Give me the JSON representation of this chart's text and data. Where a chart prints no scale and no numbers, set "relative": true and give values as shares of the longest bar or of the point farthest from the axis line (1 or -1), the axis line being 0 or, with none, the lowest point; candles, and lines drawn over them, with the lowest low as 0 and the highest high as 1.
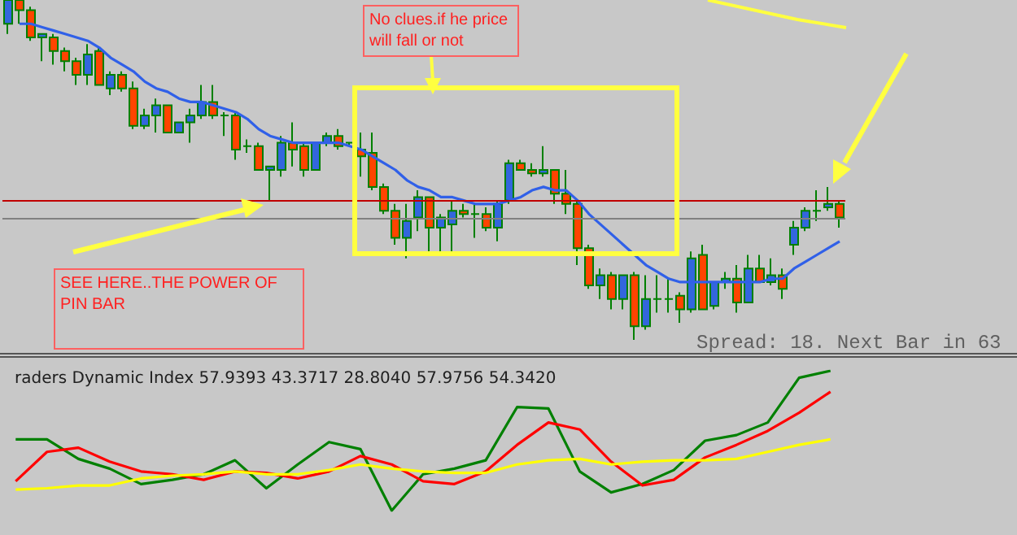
{
  "chart_data": [
    {
      "type": "candlestick",
      "relative": true,
      "marker": "none",
      "categories": [
        null,
        null,
        null,
        null,
        null,
        null,
        null,
        null,
        null,
        null,
        null,
        null,
        null,
        null,
        null,
        null,
        null,
        null,
        null,
        null,
        null,
        null,
        null,
        null,
        null,
        null,
        null,
        null,
        null,
        null,
        null,
        null,
        null,
        null,
        null,
        null,
        null,
        null,
        null,
        null,
        null,
        null,
        null,
        null,
        null,
        null,
        null,
        null,
        null,
        null,
        null,
        null,
        null,
        null,
        null,
        null,
        null,
        null,
        null,
        null,
        null,
        null,
        null,
        null,
        null,
        null,
        null,
        null,
        null,
        null,
        null,
        null,
        null,
        null
      ],
      "series": [
        {
          "type": "candlestick",
          "ohlc": [
            [
              0.93,
              1.0,
              0.9,
              1.0
            ],
            [
              1.0,
              1.0,
              0.93,
              0.97
            ],
            [
              0.97,
              0.98,
              0.88,
              0.89
            ],
            [
              0.89,
              0.9,
              0.82,
              0.9
            ],
            [
              0.89,
              0.9,
              0.81,
              0.85
            ],
            [
              0.85,
              0.86,
              0.79,
              0.82
            ],
            [
              0.82,
              0.83,
              0.75,
              0.78
            ],
            [
              0.78,
              0.87,
              0.75,
              0.84
            ],
            [
              0.85,
              0.86,
              0.75,
              0.75
            ],
            [
              0.74,
              0.79,
              0.72,
              0.78
            ],
            [
              0.78,
              0.79,
              0.73,
              0.74
            ],
            [
              0.74,
              0.76,
              0.62,
              0.63
            ],
            [
              0.63,
              0.68,
              0.62,
              0.66
            ],
            [
              0.66,
              0.71,
              0.61,
              0.69
            ],
            [
              0.69,
              0.69,
              0.61,
              0.61
            ],
            [
              0.61,
              0.64,
              0.61,
              0.64
            ],
            [
              0.64,
              0.68,
              0.58,
              0.66
            ],
            [
              0.66,
              0.75,
              0.65,
              0.7
            ],
            [
              0.7,
              0.75,
              0.65,
              0.66
            ],
            [
              0.66,
              0.67,
              0.6,
              0.66
            ],
            [
              0.66,
              0.67,
              0.53,
              0.56
            ],
            [
              0.57,
              0.59,
              0.55,
              0.57
            ],
            [
              0.57,
              0.58,
              0.5,
              0.5
            ],
            [
              0.5,
              0.51,
              0.41,
              0.51
            ],
            [
              0.5,
              0.6,
              0.48,
              0.58
            ],
            [
              0.58,
              0.64,
              0.51,
              0.56
            ],
            [
              0.57,
              0.58,
              0.48,
              0.5
            ],
            [
              0.5,
              0.58,
              0.5,
              0.58
            ],
            [
              0.58,
              0.61,
              0.57,
              0.6
            ],
            [
              0.6,
              0.62,
              0.56,
              0.57
            ],
            [
              0.58,
              0.58,
              0.57,
              0.58
            ],
            [
              0.56,
              0.61,
              0.48,
              0.54
            ],
            [
              0.55,
              0.61,
              0.44,
              0.45
            ],
            [
              0.45,
              0.46,
              0.37,
              0.38
            ],
            [
              0.38,
              0.4,
              0.28,
              0.3
            ],
            [
              0.3,
              0.4,
              0.24,
              0.35
            ],
            [
              0.36,
              0.44,
              0.32,
              0.42
            ],
            [
              0.42,
              0.42,
              0.26,
              0.33
            ],
            [
              0.33,
              0.37,
              0.26,
              0.36
            ],
            [
              0.34,
              0.41,
              0.26,
              0.38
            ],
            [
              0.38,
              0.4,
              0.36,
              0.37
            ],
            [
              0.37,
              0.4,
              0.3,
              0.37
            ],
            [
              0.37,
              0.39,
              0.32,
              0.33
            ],
            [
              0.33,
              0.41,
              0.29,
              0.4
            ],
            [
              0.41,
              0.53,
              0.4,
              0.52
            ],
            [
              0.52,
              0.53,
              0.5,
              0.5
            ],
            [
              0.5,
              0.52,
              0.48,
              0.49
            ],
            [
              0.49,
              0.57,
              0.48,
              0.5
            ],
            [
              0.5,
              0.5,
              0.4,
              0.43
            ],
            [
              0.43,
              0.5,
              0.37,
              0.4
            ],
            [
              0.4,
              0.41,
              0.22,
              0.27
            ],
            [
              0.27,
              0.28,
              0.15,
              0.16
            ],
            [
              0.16,
              0.21,
              0.12,
              0.19
            ],
            [
              0.19,
              0.2,
              0.09,
              0.12
            ],
            [
              0.12,
              0.19,
              0.09,
              0.19
            ],
            [
              0.19,
              0.2,
              0.0,
              0.04
            ],
            [
              0.04,
              0.19,
              0.03,
              0.12
            ],
            [
              0.12,
              0.19,
              0.08,
              0.12
            ],
            [
              0.12,
              0.18,
              0.08,
              0.12
            ],
            [
              0.13,
              0.14,
              0.05,
              0.09
            ],
            [
              0.09,
              0.26,
              0.08,
              0.24
            ],
            [
              0.25,
              0.28,
              0.09,
              0.09
            ],
            [
              0.1,
              0.17,
              0.09,
              0.17
            ],
            [
              0.17,
              0.2,
              0.15,
              0.18
            ],
            [
              0.18,
              0.22,
              0.08,
              0.11
            ],
            [
              0.11,
              0.25,
              0.11,
              0.21
            ],
            [
              0.21,
              0.25,
              0.17,
              0.17
            ],
            [
              0.17,
              0.24,
              0.16,
              0.19
            ],
            [
              0.19,
              0.21,
              0.12,
              0.15
            ],
            [
              0.28,
              0.35,
              0.25,
              0.33
            ],
            [
              0.33,
              0.39,
              0.32,
              0.38
            ],
            [
              0.38,
              0.44,
              0.35,
              0.38
            ],
            [
              0.39,
              0.45,
              0.38,
              0.4
            ],
            [
              0.4,
              0.41,
              0.33,
              0.36
            ]
          ],
          "colors": [
            "#3366dd",
            "#ff4400",
            "#ff4400",
            "#3366dd",
            "#ff4400",
            "#ff4400",
            "#ff4400",
            "#3366dd",
            "#ff4400",
            "#3366dd",
            "#ff4400",
            "#ff4400",
            "#3366dd",
            "#3366dd",
            "#ff4400",
            "#3366dd",
            "#3366dd",
            "#3366dd",
            "#ff4400",
            "#008000",
            "#ff4400",
            "#008000",
            "#ff4400",
            "#3366dd",
            "#3366dd",
            "#ff4400",
            "#ff4400",
            "#3366dd",
            "#3366dd",
            "#ff4400",
            "#008000",
            "#ff4400",
            "#ff4400",
            "#ff4400",
            "#ff4400",
            "#3366dd",
            "#3366dd",
            "#ff4400",
            "#3366dd",
            "#3366dd",
            "#ff4400",
            "#008000",
            "#ff4400",
            "#3366dd",
            "#3366dd",
            "#ff4400",
            "#ff4400",
            "#3366dd",
            "#ff4400",
            "#ff4400",
            "#ff4400",
            "#ff4400",
            "#3366dd",
            "#ff4400",
            "#3366dd",
            "#ff4400",
            "#3366dd",
            "#008000",
            "#008000",
            "#ff4400",
            "#3366dd",
            "#ff4400",
            "#3366dd",
            "#3366dd",
            "#ff4400",
            "#3366dd",
            "#ff4400",
            "#3366dd",
            "#ff4400",
            "#3366dd",
            "#3366dd",
            "#008000",
            "#3366dd",
            "#ff4400"
          ]
        },
        {
          "type": "line",
          "color": "#3060e8",
          "values": [
            null,
            0.93,
            0.93,
            0.92,
            0.91,
            0.9,
            0.89,
            0.88,
            0.86,
            0.83,
            0.81,
            0.79,
            0.76,
            0.74,
            0.73,
            0.71,
            0.7,
            0.7,
            0.69,
            0.68,
            0.67,
            0.65,
            0.62,
            0.6,
            0.59,
            0.58,
            0.58,
            0.58,
            0.58,
            0.58,
            0.57,
            0.56,
            0.54,
            0.52,
            0.5,
            0.47,
            0.45,
            0.44,
            0.42,
            0.42,
            0.41,
            0.4,
            0.4,
            0.4,
            0.41,
            0.42,
            0.44,
            0.45,
            0.44,
            0.44,
            0.41,
            0.37,
            0.34,
            0.31,
            0.28,
            0.25,
            0.22,
            0.2,
            0.18,
            0.17,
            0.17,
            0.17,
            0.17,
            0.17,
            0.17,
            0.17,
            0.17,
            0.18,
            0.18,
            0.21,
            0.23,
            0.25,
            0.27,
            0.29
          ]
        }
      ],
      "ref_lines": [
        {
          "axis": "y",
          "value": 0.41,
          "color": "#c00000"
        },
        {
          "axis": "y",
          "value": 0.36,
          "color": "#808080"
        }
      ],
      "annotations": [
        "No clues.if he price will fall or not",
        "SEE HERE..THE POWER OF PIN BAR",
        "Spread: 18. Next Bar in 63"
      ]
    },
    {
      "type": "line",
      "relative": true,
      "marker": "none",
      "title": "raders Dynamic Index 57.9393 43.3717 28.8040 57.9756 54.3420",
      "categories": [
        null,
        null,
        null,
        null,
        null,
        null,
        null,
        null,
        null,
        null,
        null,
        null,
        null,
        null,
        null,
        null,
        null,
        null,
        null,
        null,
        null,
        null,
        null,
        null,
        null,
        null,
        null
      ],
      "series": [
        {
          "color": "#008000",
          "values": [
            0.51,
            0.51,
            0.37,
            0.3,
            0.19,
            0.22,
            0.26,
            0.36,
            0.16,
            0.33,
            0.49,
            0.44,
            0,
            0.26,
            0.3,
            0.36,
            0.74,
            0.73,
            0.28,
            0.13,
            0.19,
            0.29,
            0.5,
            0.54,
            0.63,
            0.95,
            1.0
          ]
        },
        {
          "color": "#ff0000",
          "values": [
            0.21,
            0.42,
            0.45,
            0.35,
            0.28,
            0.26,
            0.22,
            0.28,
            0.27,
            0.23,
            0.28,
            0.39,
            0.33,
            0.21,
            0.19,
            0.28,
            0.47,
            0.63,
            0.58,
            0.35,
            0.18,
            0.22,
            0.38,
            0.47,
            0.57,
            0.7,
            0.85
          ]
        },
        {
          "color": "#ffff00",
          "values": [
            0.15,
            0.16,
            0.18,
            0.18,
            0.23,
            0.25,
            0.26,
            0.28,
            0.26,
            0.26,
            0.29,
            0.33,
            0.3,
            0.28,
            0.27,
            0.27,
            0.33,
            0.36,
            0.37,
            0.33,
            0.35,
            0.36,
            0.36,
            0.37,
            0.42,
            0.47,
            0.51
          ]
        }
      ]
    }
  ]
}
